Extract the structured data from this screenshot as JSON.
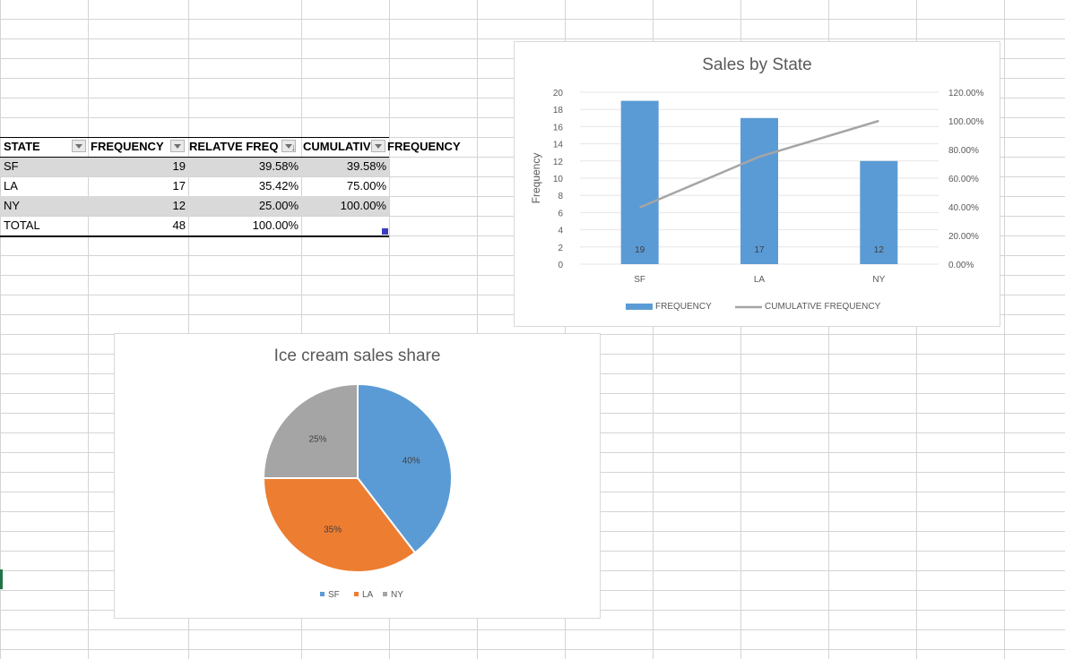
{
  "table": {
    "headers": [
      "STATE",
      "FREQUENCY",
      "RELATVE FREQ",
      "CUMULATIV",
      "FREQUENCY"
    ],
    "rows": [
      [
        "SF",
        "19",
        "39.58%",
        "39.58%"
      ],
      [
        "LA",
        "17",
        "35.42%",
        "75.00%"
      ],
      [
        "NY",
        "12",
        "25.00%",
        "100.00%"
      ]
    ],
    "total": [
      "TOTAL",
      "48",
      "100.00%",
      ""
    ]
  },
  "colors": {
    "bar": "#5B9BD5",
    "line": "#A5A5A5",
    "pie_sf": "#5B9BD5",
    "pie_la": "#ED7D31",
    "pie_ny": "#A5A5A5",
    "row_shade": "#d9d9d9"
  },
  "chart_data": [
    {
      "type": "bar",
      "title": "Sales by State",
      "categories": [
        "SF",
        "LA",
        "NY"
      ],
      "series": [
        {
          "name": "FREQUENCY",
          "values": [
            19,
            17,
            12
          ],
          "axis": "left",
          "kind": "bar"
        },
        {
          "name": "CUMULATIVE FREQUENCY",
          "values": [
            0.3958,
            0.75,
            1.0
          ],
          "axis": "right",
          "kind": "line"
        }
      ],
      "ylabel": "Frequency",
      "ylim": [
        0,
        20
      ],
      "yticks": [
        "0",
        "2",
        "4",
        "6",
        "8",
        "10",
        "12",
        "14",
        "16",
        "18",
        "20"
      ],
      "y2lim": [
        0,
        1.2
      ],
      "y2ticks": [
        "0.00%",
        "20.00%",
        "40.00%",
        "60.00%",
        "80.00%",
        "100.00%",
        "120.00%"
      ],
      "data_labels": [
        "19",
        "17",
        "12"
      ],
      "legend": [
        "FREQUENCY",
        "CUMULATIVE FREQUENCY"
      ],
      "legend_position": "bottom",
      "grid": true
    },
    {
      "type": "pie",
      "title": "Ice cream sales share",
      "categories": [
        "SF",
        "LA",
        "NY"
      ],
      "values": [
        19,
        17,
        12
      ],
      "data_labels": [
        "40%",
        "35%",
        "25%"
      ],
      "legend": [
        "SF",
        "LA",
        "NY"
      ],
      "legend_position": "bottom"
    }
  ]
}
